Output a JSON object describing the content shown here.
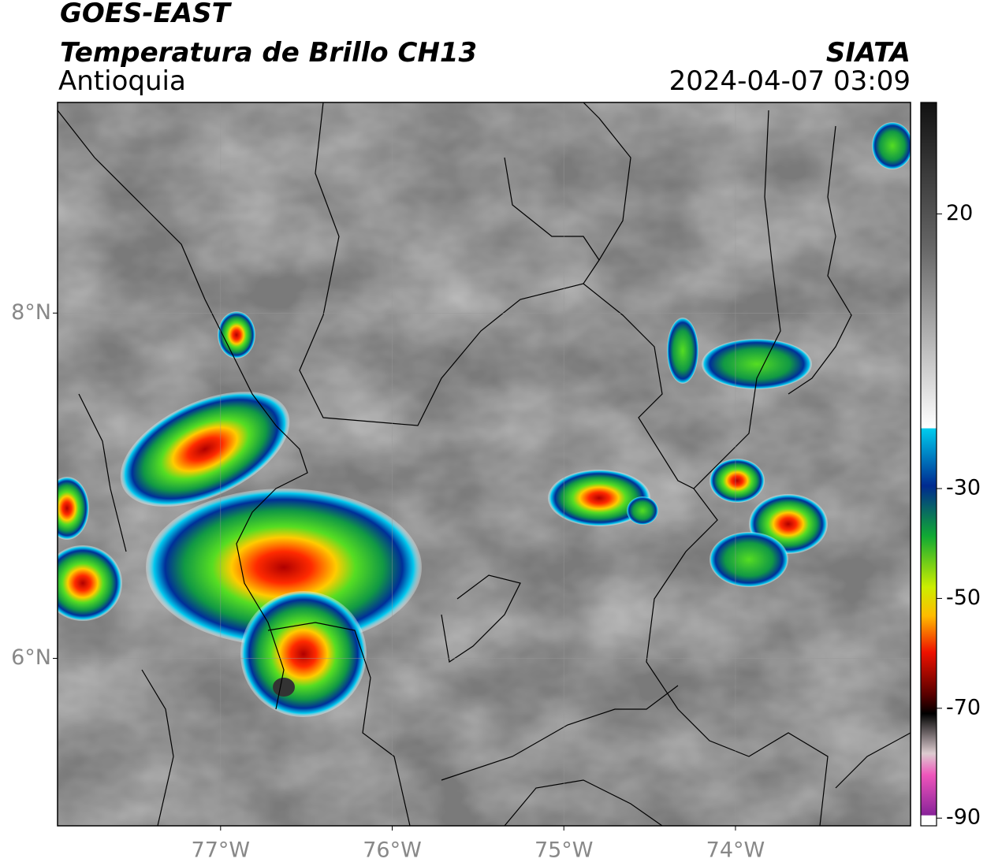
{
  "header": {
    "title": "GOES-EAST",
    "subtitle": "Temperatura de Brillo CH13",
    "region": "Antioquia",
    "source": "SIATA",
    "datetime": "2024-04-07 03:09"
  },
  "map": {
    "xlim": [
      -77.95,
      -72.98
    ],
    "ylim": [
      5.03,
      9.22
    ],
    "xticks": [
      {
        "value": -77,
        "label": "77°W"
      },
      {
        "value": -76,
        "label": "76°W"
      },
      {
        "value": -75,
        "label": "75°W"
      },
      {
        "value": -74,
        "label": "74°W"
      }
    ],
    "yticks": [
      {
        "value": 8,
        "label": "8°N"
      },
      {
        "value": 6,
        "label": "6°N"
      }
    ],
    "grid": true
  },
  "colorbar": {
    "lim": [
      -91.4,
      40.3
    ],
    "ticks": [
      20,
      -30,
      -50,
      -70,
      -90
    ]
  }
}
